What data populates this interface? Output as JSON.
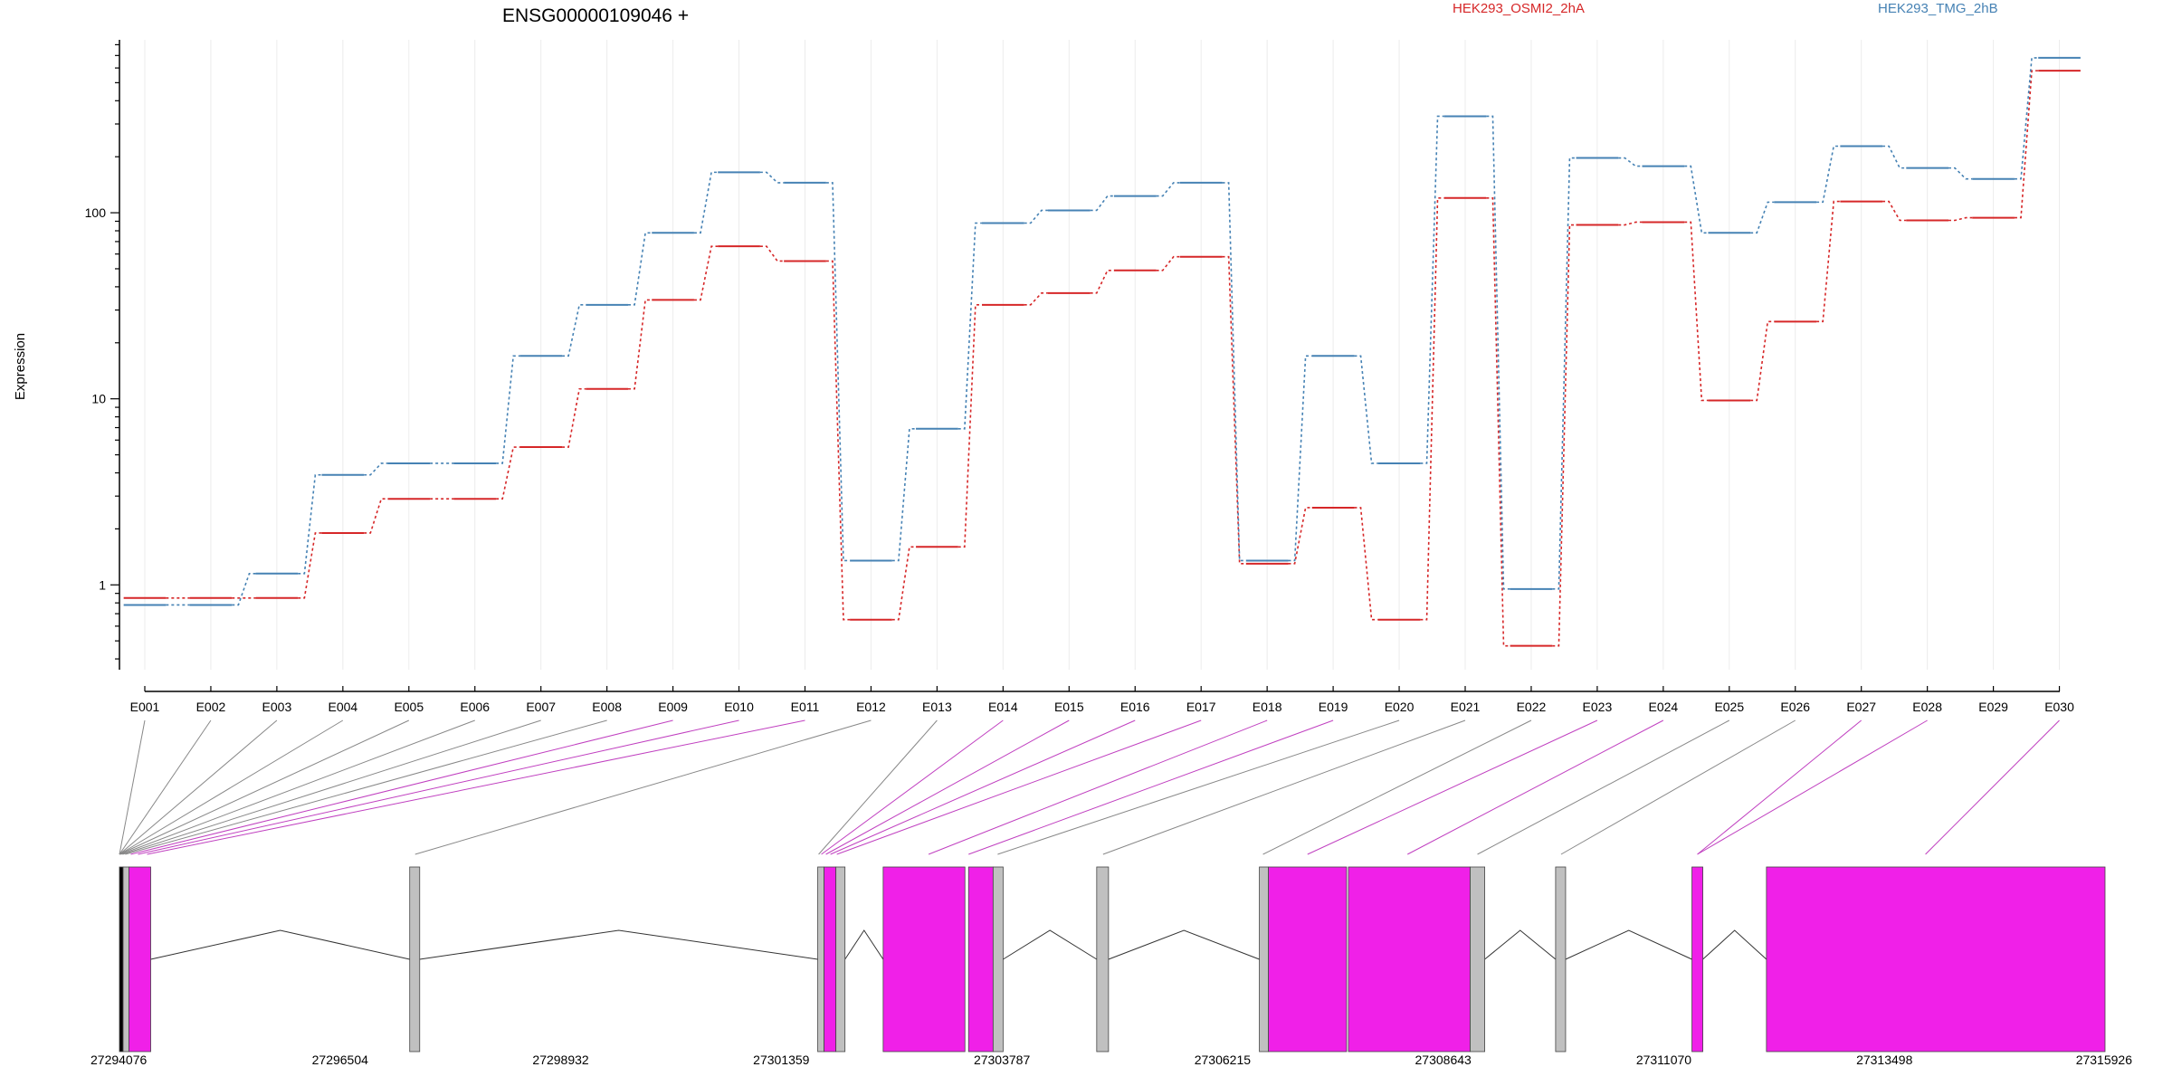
{
  "chart_data": {
    "type": "line",
    "title": "ENSG00000109046 +",
    "ylabel": "Expression",
    "y_scale": "log",
    "ylim": [
      0.35,
      850
    ],
    "y_ticks": [
      1,
      10,
      100
    ],
    "y_tick_labels": [
      "1",
      "10",
      "100"
    ],
    "categories": [
      "E001",
      "E002",
      "E003",
      "E004",
      "E005",
      "E006",
      "E007",
      "E008",
      "E009",
      "E010",
      "E011",
      "E012",
      "E013",
      "E014",
      "E015",
      "E016",
      "E017",
      "E018",
      "E019",
      "E020",
      "E021",
      "E022",
      "E023",
      "E024",
      "E025",
      "E026",
      "E027",
      "E028",
      "E029",
      "E030"
    ],
    "series": [
      {
        "name": "HEK293_OSMI2_2hA",
        "color": "#d62728",
        "values": [
          0.85,
          0.85,
          0.85,
          1.9,
          2.9,
          2.9,
          5.5,
          11.3,
          34,
          66,
          55,
          0.65,
          1.6,
          32,
          37,
          49,
          58,
          1.3,
          2.6,
          0.65,
          120,
          0.47,
          86,
          89,
          9.8,
          26,
          115,
          91,
          94,
          580
        ]
      },
      {
        "name": "HEK293_TMG_2hB",
        "color": "#4682b4",
        "values": [
          0.78,
          0.78,
          1.15,
          3.9,
          4.5,
          4.5,
          17,
          32,
          78,
          165,
          145,
          1.35,
          6.9,
          88,
          103,
          123,
          145,
          1.35,
          17,
          4.5,
          330,
          0.95,
          197,
          178,
          78,
          114,
          228,
          174,
          152,
          680
        ]
      }
    ],
    "genomic_axis": {
      "tick_labels": [
        "27294076",
        "27296504",
        "27298932",
        "27301359",
        "27303787",
        "27306215",
        "27308643",
        "27311070",
        "27313498",
        "27315926"
      ]
    },
    "gene_model": {
      "exon_color": "#f020e8",
      "other_color": "#c0c0c0",
      "blocks": [
        {
          "start": 27294076,
          "end": 27294116,
          "color": "#000000"
        },
        {
          "start": 27294116,
          "end": 27294180,
          "color": "#c0c0c0"
        },
        {
          "start": 27294180,
          "end": 27294420,
          "color": "#f020e8"
        },
        {
          "start": 27297270,
          "end": 27297380,
          "color": "#c0c0c0"
        },
        {
          "start": 27301760,
          "end": 27301830,
          "color": "#c0c0c0"
        },
        {
          "start": 27301830,
          "end": 27301960,
          "color": "#f020e8"
        },
        {
          "start": 27301960,
          "end": 27302060,
          "color": "#c0c0c0"
        },
        {
          "start": 27302480,
          "end": 27303380,
          "color": "#f020e8"
        },
        {
          "start": 27303420,
          "end": 27303690,
          "color": "#f020e8"
        },
        {
          "start": 27303690,
          "end": 27303800,
          "color": "#c0c0c0"
        },
        {
          "start": 27304830,
          "end": 27304960,
          "color": "#c0c0c0"
        },
        {
          "start": 27306620,
          "end": 27306720,
          "color": "#c0c0c0"
        },
        {
          "start": 27306720,
          "end": 27307580,
          "color": "#f020e8"
        },
        {
          "start": 27307600,
          "end": 27308940,
          "color": "#f020e8"
        },
        {
          "start": 27308940,
          "end": 27309100,
          "color": "#c0c0c0"
        },
        {
          "start": 27309880,
          "end": 27309990,
          "color": "#c0c0c0"
        },
        {
          "start": 27311380,
          "end": 27311500,
          "color": "#f020e8"
        },
        {
          "start": 27312200,
          "end": 27315926,
          "color": "#f020e8"
        }
      ],
      "introns": [
        [
          27294420,
          27297270
        ],
        [
          27297380,
          27301760
        ],
        [
          27302060,
          27302480
        ],
        [
          27303800,
          27304830
        ],
        [
          27304960,
          27306620
        ],
        [
          27309100,
          27309880
        ],
        [
          27309990,
          27311380
        ],
        [
          27311500,
          27312200
        ]
      ],
      "connectors": [
        {
          "bin": 1,
          "pos": 27294076,
          "color": "#888888"
        },
        {
          "bin": 2,
          "pos": 27294076,
          "color": "#888888"
        },
        {
          "bin": 3,
          "pos": 27294076,
          "color": "#888888"
        },
        {
          "bin": 4,
          "pos": 27294076,
          "color": "#888888"
        },
        {
          "bin": 5,
          "pos": 27294076,
          "color": "#888888"
        },
        {
          "bin": 6,
          "pos": 27294090,
          "color": "#888888"
        },
        {
          "bin": 7,
          "pos": 27294110,
          "color": "#888888"
        },
        {
          "bin": 8,
          "pos": 27294140,
          "color": "#888888"
        },
        {
          "bin": 9,
          "pos": 27294200,
          "color": "#c040c0"
        },
        {
          "bin": 10,
          "pos": 27294280,
          "color": "#c040c0"
        },
        {
          "bin": 11,
          "pos": 27294380,
          "color": "#c040c0"
        },
        {
          "bin": 12,
          "pos": 27297330,
          "color": "#888888"
        },
        {
          "bin": 13,
          "pos": 27301770,
          "color": "#888888"
        },
        {
          "bin": 14,
          "pos": 27301800,
          "color": "#c040c0"
        },
        {
          "bin": 15,
          "pos": 27301850,
          "color": "#c040c0"
        },
        {
          "bin": 16,
          "pos": 27301900,
          "color": "#c040c0"
        },
        {
          "bin": 17,
          "pos": 27301970,
          "color": "#c040c0"
        },
        {
          "bin": 18,
          "pos": 27302980,
          "color": "#c040c0"
        },
        {
          "bin": 19,
          "pos": 27303420,
          "color": "#c040c0"
        },
        {
          "bin": 20,
          "pos": 27303740,
          "color": "#888888"
        },
        {
          "bin": 21,
          "pos": 27304900,
          "color": "#888888"
        },
        {
          "bin": 22,
          "pos": 27306660,
          "color": "#888888"
        },
        {
          "bin": 23,
          "pos": 27307150,
          "color": "#c040c0"
        },
        {
          "bin": 24,
          "pos": 27308250,
          "color": "#c040c0"
        },
        {
          "bin": 25,
          "pos": 27309020,
          "color": "#888888"
        },
        {
          "bin": 26,
          "pos": 27309940,
          "color": "#888888"
        },
        {
          "bin": 27,
          "pos": 27311440,
          "color": "#c040c0"
        },
        {
          "bin": 28,
          "pos": 27311440,
          "color": "#c040c0"
        },
        {
          "bin": 30,
          "pos": 27313950,
          "color": "#c040c0"
        }
      ]
    }
  }
}
